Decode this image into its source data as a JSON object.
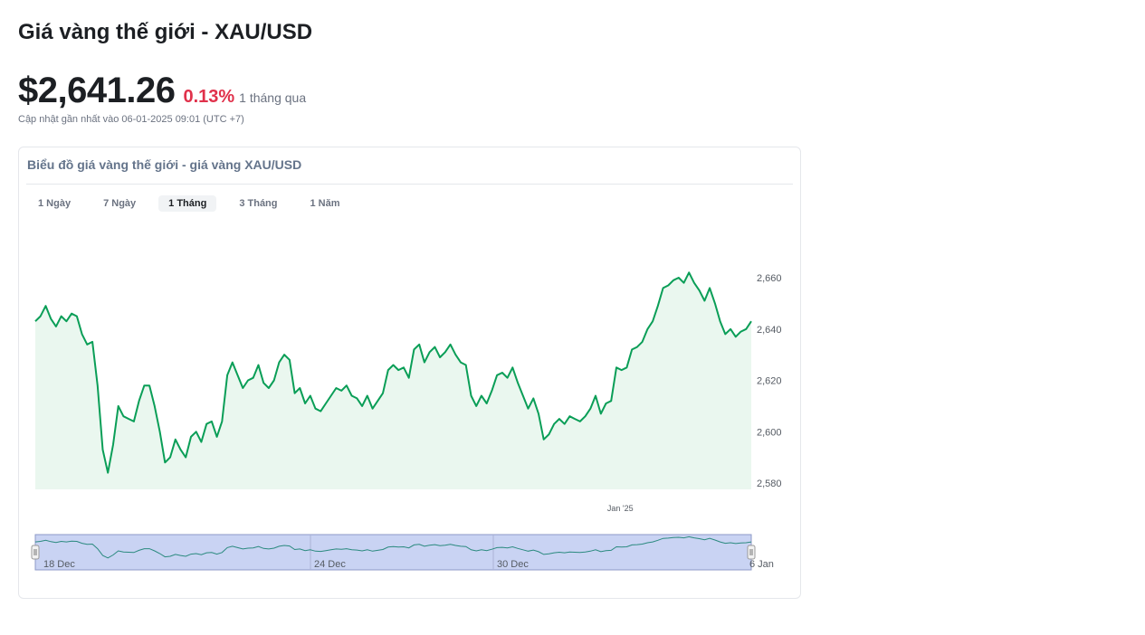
{
  "header": {
    "title": "Giá vàng thế giới - XAU/USD",
    "price": "$2,641.26",
    "change": "0.13%",
    "period": "1 tháng qua",
    "updated": "Cập nhật gần nhất vào 06-01-2025 09:01 (UTC +7)"
  },
  "card": {
    "title": "Biểu đồ giá vàng thế giới - giá vàng XAU/USD",
    "tabs": [
      {
        "label": "1 Ngày",
        "active": false
      },
      {
        "label": "7 Ngày",
        "active": false
      },
      {
        "label": "1 Tháng",
        "active": true
      },
      {
        "label": "3 Tháng",
        "active": false
      },
      {
        "label": "1 Năm",
        "active": false
      }
    ]
  },
  "colors": {
    "line": "#0a9e57",
    "area": "#eaf7ef",
    "navigator_fill": "#c9d3f3",
    "navigator_border": "#8d99c7",
    "change": "#e0314b"
  },
  "chart_data": {
    "type": "area",
    "title": "",
    "xlabel": "",
    "ylabel": "",
    "ylim": [
      2580,
      2665
    ],
    "yticks": [
      "2,660",
      "2,640",
      "2,620",
      "2,600",
      "2,580"
    ],
    "ytick_values": [
      2660,
      2640,
      2620,
      2600,
      2580
    ],
    "xticks": [
      {
        "label": "Jan '25",
        "x": 0.817
      }
    ],
    "navigator_ticks": [
      "18 Dec",
      "24 Dec",
      "30 Dec",
      "6 Jan"
    ],
    "series": [
      {
        "values": [
          2643,
          2645,
          2649,
          2644,
          2641,
          2645,
          2643,
          2646,
          2645,
          2638,
          2634,
          2635,
          2618,
          2593,
          2584,
          2595,
          2610,
          2606,
          2605,
          2604,
          2612,
          2618,
          2618,
          2610,
          2600,
          2588,
          2590,
          2597,
          2593,
          2590,
          2598,
          2600,
          2596,
          2603,
          2604,
          2598,
          2604,
          2622,
          2627,
          2622,
          2617,
          2620,
          2621,
          2626,
          2619,
          2617,
          2620,
          2627,
          2630,
          2628,
          2615,
          2617,
          2611,
          2614,
          2609,
          2608,
          2611,
          2614,
          2617,
          2616,
          2618,
          2614,
          2613,
          2610,
          2614,
          2609,
          2612,
          2615,
          2624,
          2626,
          2624,
          2625,
          2621,
          2632,
          2634,
          2627,
          2631,
          2633,
          2629,
          2631,
          2634,
          2630,
          2627,
          2626,
          2614,
          2610,
          2614,
          2611,
          2616,
          2622,
          2623,
          2621,
          2625,
          2619,
          2614,
          2609,
          2613,
          2607,
          2597,
          2599,
          2603,
          2605,
          2603,
          2606,
          2605,
          2604,
          2606,
          2609,
          2614,
          2607,
          2611,
          2612,
          2625,
          2624,
          2625,
          2632,
          2633,
          2635,
          2640,
          2643,
          2649,
          2656,
          2657,
          2659,
          2660,
          2658,
          2662,
          2658,
          2655,
          2651,
          2656,
          2650,
          2643,
          2638,
          2640,
          2637,
          2639,
          2640,
          2643
        ]
      }
    ]
  }
}
